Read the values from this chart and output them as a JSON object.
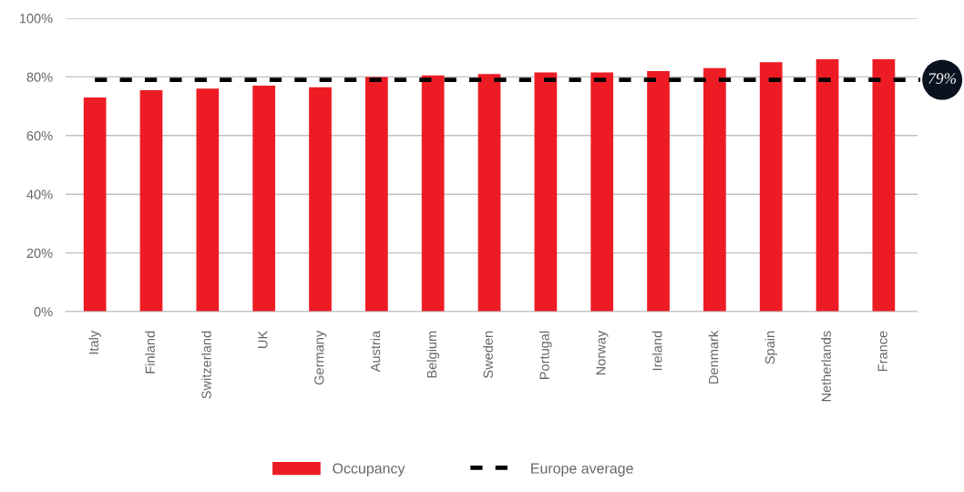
{
  "chart_data": {
    "type": "bar",
    "categories": [
      "Italy",
      "Finland",
      "Switzerland",
      "UK",
      "Germany",
      "Austria",
      "Belgium",
      "Sweden",
      "Portugal",
      "Norway",
      "Ireland",
      "Denmark",
      "Spain",
      "Netherlands",
      "France"
    ],
    "series": [
      {
        "name": "Occupancy",
        "color": "#ed1c24",
        "values": [
          73,
          75.5,
          76,
          77,
          76.5,
          80,
          80.5,
          81,
          81.5,
          81.5,
          82,
          83,
          85,
          86,
          86
        ]
      }
    ],
    "ylim": [
      0,
      100
    ],
    "yticks": [
      {
        "value": 0,
        "label": "0%"
      },
      {
        "value": 20,
        "label": "20%"
      },
      {
        "value": 40,
        "label": "40%"
      },
      {
        "value": 60,
        "label": "60%"
      },
      {
        "value": 80,
        "label": "80%"
      },
      {
        "value": 100,
        "label": "100%"
      }
    ],
    "grid": "y",
    "legend": "bottom",
    "ref_lines": [
      {
        "axis": "y",
        "value": 79,
        "label": "Europe average",
        "color": "#000000",
        "line_style": "dashed"
      }
    ],
    "annotations": [
      "79%"
    ]
  }
}
